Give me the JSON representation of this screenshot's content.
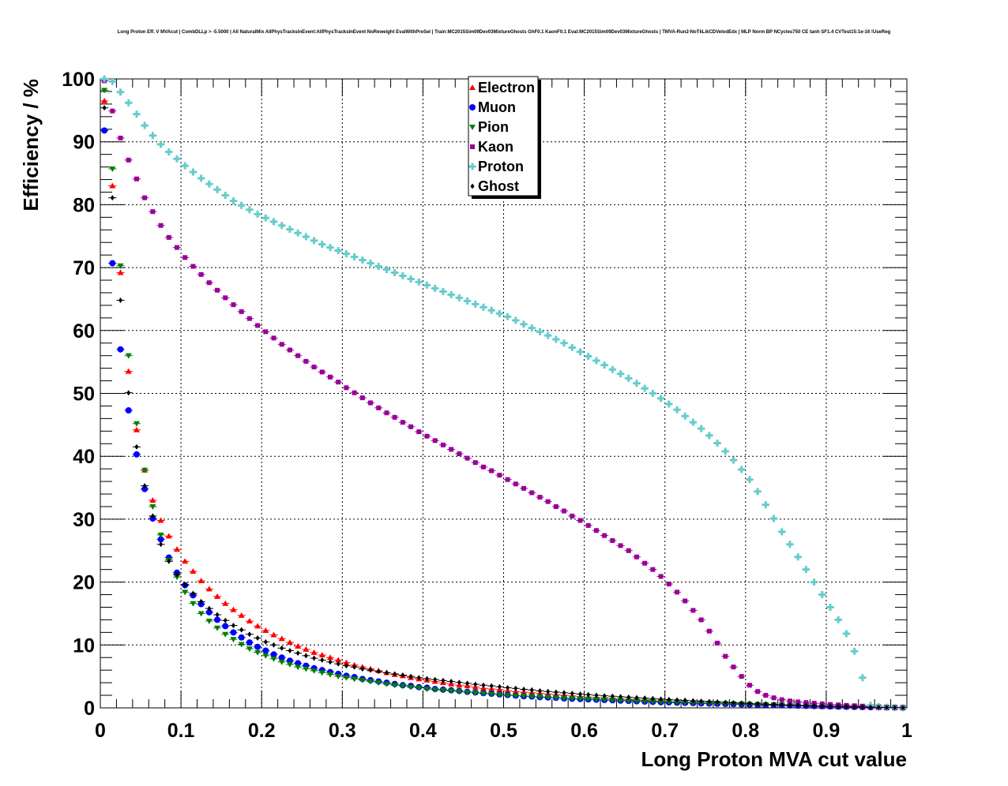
{
  "chart_data": {
    "type": "scatter",
    "title": "Long Proton Eff. V MVAcut | CombDLLp > -5.5000 | All NaturalMix AllPhysTracksInEvent:AllPhysTracksInEvent NoReweight EvalWithPreSel | Train:MC2015Sim09Dev03MixtureGhosts GhF0.1 KaonF0.1 Eval:MC2015Sim09Dev03MixtureGhosts | TMVA-Run2-NoTkLikCDVelodEdx | MLP Norm BP NCycles750 CE tanh SF1.4 CVTest15:1e-16 !UseReg",
    "xlabel": "Long Proton MVA cut value",
    "ylabel": "Efficiency / %",
    "xlim": [
      0,
      1
    ],
    "ylim": [
      0,
      100
    ],
    "x_ticks": [
      "0",
      "0.1",
      "0.2",
      "0.3",
      "0.4",
      "0.5",
      "0.6",
      "0.7",
      "0.8",
      "0.9",
      "1"
    ],
    "y_ticks": [
      "0",
      "10",
      "20",
      "30",
      "40",
      "50",
      "60",
      "70",
      "80",
      "90",
      "100"
    ],
    "grid": true,
    "legend_position": "top-center",
    "x": [
      0.005,
      0.015,
      0.025,
      0.035,
      0.045,
      0.055,
      0.065,
      0.075,
      0.085,
      0.095,
      0.105,
      0.115,
      0.125,
      0.135,
      0.145,
      0.155,
      0.165,
      0.175,
      0.185,
      0.195,
      0.205,
      0.215,
      0.225,
      0.235,
      0.245,
      0.255,
      0.265,
      0.275,
      0.285,
      0.295,
      0.305,
      0.315,
      0.325,
      0.335,
      0.345,
      0.355,
      0.365,
      0.375,
      0.385,
      0.395,
      0.405,
      0.415,
      0.425,
      0.435,
      0.445,
      0.455,
      0.465,
      0.475,
      0.485,
      0.495,
      0.505,
      0.515,
      0.525,
      0.535,
      0.545,
      0.555,
      0.565,
      0.575,
      0.585,
      0.595,
      0.605,
      0.615,
      0.625,
      0.635,
      0.645,
      0.655,
      0.665,
      0.675,
      0.685,
      0.695,
      0.705,
      0.715,
      0.725,
      0.735,
      0.745,
      0.755,
      0.765,
      0.775,
      0.785,
      0.795,
      0.805,
      0.815,
      0.825,
      0.835,
      0.845,
      0.855,
      0.865,
      0.875,
      0.885,
      0.895,
      0.905,
      0.915,
      0.925,
      0.935,
      0.945,
      0.955,
      0.965,
      0.975,
      0.985,
      0.995
    ],
    "series": [
      {
        "name": "Electron",
        "color": "#ff0000",
        "marker": "triangle-up",
        "values": [
          96.5,
          83.0,
          69.2,
          53.5,
          44.2,
          37.8,
          33.0,
          29.8,
          27.3,
          25.2,
          23.3,
          21.7,
          20.2,
          18.9,
          17.7,
          16.6,
          15.6,
          14.7,
          13.8,
          13.0,
          12.3,
          11.6,
          11.0,
          10.4,
          9.8,
          9.3,
          8.8,
          8.4,
          8.0,
          7.6,
          7.2,
          6.8,
          6.5,
          6.2,
          5.9,
          5.6,
          5.3,
          5.1,
          4.8,
          4.6,
          4.4,
          4.2,
          4.0,
          3.8,
          3.6,
          3.5,
          3.3,
          3.1,
          3.0,
          2.9,
          2.7,
          2.6,
          2.5,
          2.4,
          2.3,
          2.2,
          2.1,
          2.0,
          1.9,
          1.8,
          1.7,
          1.6,
          1.55,
          1.5,
          1.4,
          1.35,
          1.3,
          1.2,
          1.15,
          1.1,
          1.0,
          0.95,
          0.9,
          0.85,
          0.8,
          0.75,
          0.7,
          0.65,
          0.6,
          0.55,
          0.5,
          0.47,
          0.44,
          0.4,
          0.37,
          0.34,
          0.3,
          0.27,
          0.24,
          0.21,
          0.18,
          0.16,
          0.14,
          0.12,
          0.1,
          0.08,
          0.06,
          0.05,
          0.04,
          0.02
        ]
      },
      {
        "name": "Muon",
        "color": "#0000ff",
        "marker": "circle",
        "values": [
          91.8,
          70.7,
          57.0,
          47.3,
          40.3,
          34.8,
          30.1,
          26.8,
          23.9,
          21.5,
          19.5,
          17.9,
          16.5,
          15.2,
          14.0,
          13.0,
          12.0,
          11.2,
          10.4,
          9.7,
          9.1,
          8.5,
          8.0,
          7.5,
          7.1,
          6.7,
          6.3,
          6.0,
          5.7,
          5.4,
          5.1,
          4.9,
          4.6,
          4.4,
          4.2,
          4.0,
          3.8,
          3.6,
          3.5,
          3.3,
          3.2,
          3.0,
          2.9,
          2.8,
          2.7,
          2.55,
          2.45,
          2.35,
          2.25,
          2.15,
          2.05,
          1.95,
          1.85,
          1.8,
          1.7,
          1.65,
          1.6,
          1.5,
          1.45,
          1.4,
          1.35,
          1.3,
          1.25,
          1.2,
          1.15,
          1.1,
          1.05,
          1.0,
          0.95,
          0.9,
          0.87,
          0.83,
          0.8,
          0.76,
          0.72,
          0.69,
          0.66,
          0.62,
          0.59,
          0.56,
          0.53,
          0.5,
          0.47,
          0.44,
          0.41,
          0.38,
          0.35,
          0.32,
          0.29,
          0.26,
          0.23,
          0.2,
          0.18,
          0.15,
          0.13,
          0.11,
          0.09,
          0.07,
          0.05,
          0.03
        ]
      },
      {
        "name": "Pion",
        "color": "#008000",
        "marker": "triangle-down",
        "values": [
          98.2,
          85.7,
          70.3,
          56.0,
          45.2,
          37.8,
          32.0,
          27.5,
          23.5,
          20.8,
          18.4,
          16.6,
          15.0,
          13.8,
          12.7,
          11.7,
          10.9,
          10.1,
          9.4,
          8.8,
          8.3,
          7.8,
          7.3,
          6.9,
          6.5,
          6.2,
          5.9,
          5.6,
          5.3,
          5.0,
          4.8,
          4.6,
          4.4,
          4.2,
          4.0,
          3.8,
          3.6,
          3.5,
          3.3,
          3.2,
          3.0,
          2.9,
          2.8,
          2.7,
          2.6,
          2.5,
          2.4,
          2.3,
          2.2,
          2.1,
          2.0,
          1.95,
          1.9,
          1.8,
          1.75,
          1.7,
          1.6,
          1.55,
          1.5,
          1.45,
          1.4,
          1.35,
          1.3,
          1.25,
          1.2,
          1.15,
          1.1,
          1.05,
          1.0,
          0.97,
          0.93,
          0.9,
          0.86,
          0.82,
          0.79,
          0.75,
          0.72,
          0.68,
          0.65,
          0.62,
          0.58,
          0.55,
          0.52,
          0.49,
          0.46,
          0.43,
          0.4,
          0.37,
          0.34,
          0.31,
          0.28,
          0.25,
          0.22,
          0.19,
          0.16,
          0.13,
          0.1,
          0.08,
          0.06,
          0.04
        ]
      },
      {
        "name": "Kaon",
        "color": "#990099",
        "marker": "square",
        "values": [
          99.7,
          94.9,
          90.6,
          87.1,
          84.1,
          81.1,
          78.9,
          76.7,
          74.8,
          73.2,
          71.6,
          70.2,
          68.9,
          67.6,
          66.4,
          65.2,
          64.1,
          63.0,
          61.9,
          60.8,
          59.8,
          58.8,
          57.8,
          56.9,
          56.0,
          55.1,
          54.2,
          53.4,
          52.6,
          51.8,
          50.9,
          50.1,
          49.3,
          48.5,
          47.7,
          46.9,
          46.2,
          45.4,
          44.7,
          43.9,
          43.2,
          42.5,
          41.8,
          41.1,
          40.4,
          39.7,
          39.0,
          38.3,
          37.7,
          37.0,
          36.3,
          35.6,
          34.9,
          34.2,
          33.5,
          32.8,
          32.0,
          31.3,
          30.5,
          29.8,
          29.0,
          28.2,
          27.4,
          26.6,
          25.8,
          25.0,
          24.0,
          23.0,
          22.0,
          20.9,
          19.7,
          18.4,
          17.0,
          15.5,
          14.0,
          12.2,
          10.3,
          8.2,
          6.5,
          5.0,
          3.6,
          2.6,
          2.0,
          1.6,
          1.3,
          1.1,
          0.95,
          0.85,
          0.75,
          0.65,
          0.55,
          0.48,
          0.4,
          0.34,
          0.28,
          0.22,
          0.17,
          0.12,
          0.08,
          0.04
        ]
      },
      {
        "name": "Proton",
        "color": "#66cccc",
        "marker": "cross",
        "values": [
          100.0,
          99.6,
          97.9,
          96.2,
          94.4,
          92.6,
          91.0,
          89.6,
          88.4,
          87.3,
          86.2,
          85.2,
          84.2,
          83.3,
          82.4,
          81.5,
          80.6,
          79.9,
          79.2,
          78.5,
          77.9,
          77.3,
          76.7,
          76.1,
          75.5,
          74.9,
          74.3,
          73.7,
          73.2,
          72.7,
          72.2,
          71.7,
          71.2,
          70.7,
          70.2,
          69.7,
          69.2,
          68.7,
          68.2,
          67.7,
          67.2,
          66.7,
          66.2,
          65.7,
          65.2,
          64.7,
          64.2,
          63.7,
          63.2,
          62.7,
          62.2,
          61.6,
          61.0,
          60.4,
          59.8,
          59.2,
          58.6,
          58.0,
          57.3,
          56.6,
          55.9,
          55.2,
          54.5,
          53.8,
          53.1,
          52.4,
          51.6,
          50.8,
          50.0,
          49.2,
          48.3,
          47.4,
          46.4,
          45.4,
          44.4,
          43.3,
          42.1,
          40.8,
          39.4,
          37.9,
          36.3,
          34.4,
          32.3,
          30.1,
          28.0,
          26.0,
          24.0,
          22.0,
          20.0,
          18.0,
          16.0,
          14.0,
          11.8,
          9.0,
          4.8,
          0.4,
          0.2,
          0.1,
          0.05,
          0.02
        ]
      },
      {
        "name": "Ghost",
        "color": "#000000",
        "marker": "diamond",
        "values": [
          95.4,
          81.1,
          64.8,
          50.1,
          41.5,
          35.3,
          30.5,
          26.0,
          23.3,
          21.2,
          19.6,
          18.2,
          16.9,
          15.8,
          14.8,
          13.9,
          13.1,
          12.4,
          11.7,
          11.1,
          10.5,
          10.0,
          9.5,
          9.1,
          8.7,
          8.3,
          7.9,
          7.6,
          7.3,
          7.0,
          6.7,
          6.5,
          6.2,
          6.0,
          5.8,
          5.6,
          5.4,
          5.2,
          5.0,
          4.8,
          4.65,
          4.5,
          4.35,
          4.2,
          4.05,
          3.9,
          3.75,
          3.6,
          3.5,
          3.35,
          3.2,
          3.1,
          2.95,
          2.85,
          2.7,
          2.6,
          2.5,
          2.4,
          2.3,
          2.2,
          2.1,
          2.0,
          1.92,
          1.85,
          1.78,
          1.7,
          1.62,
          1.55,
          1.48,
          1.4,
          1.33,
          1.26,
          1.2,
          1.13,
          1.06,
          1.0,
          0.94,
          0.88,
          0.82,
          0.76,
          0.7,
          0.65,
          0.6,
          0.55,
          0.5,
          0.46,
          0.42,
          0.38,
          0.34,
          0.3,
          0.26,
          0.23,
          0.2,
          0.17,
          0.14,
          0.11,
          0.09,
          0.07,
          0.05,
          0.03
        ]
      }
    ]
  }
}
